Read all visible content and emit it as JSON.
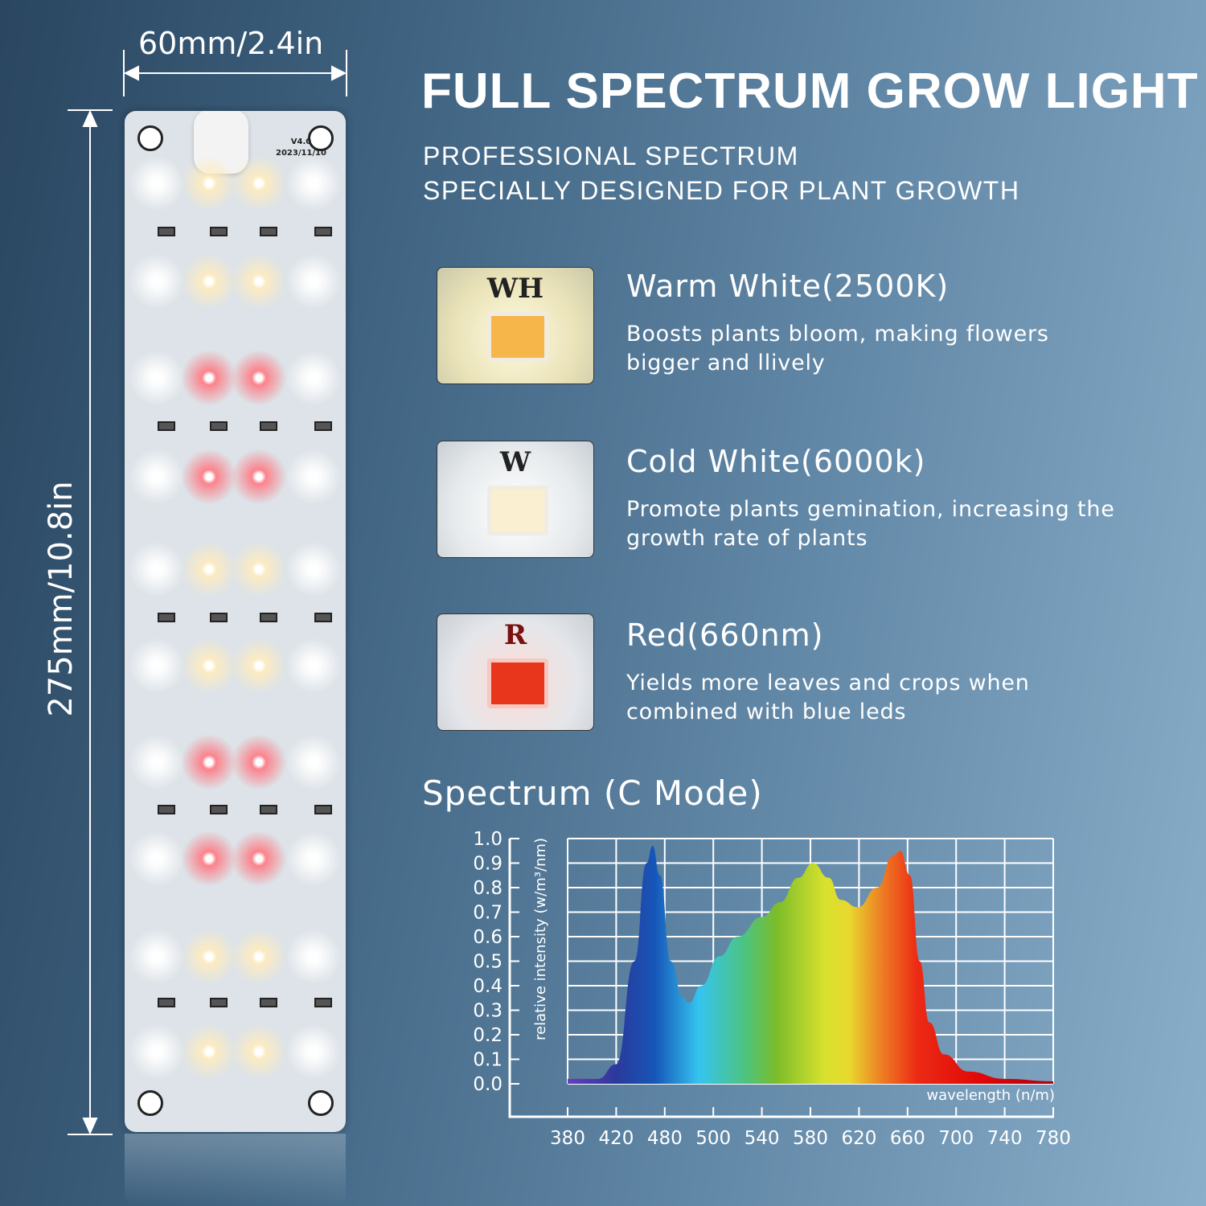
{
  "dimensions": {
    "width": "60mm/2.4in",
    "height": "275mm/10.8in"
  },
  "board": {
    "version": "V4.0",
    "date": "2023/11/10"
  },
  "header": {
    "title": "FULL SPECTRUM GROW LIGHT",
    "subtitle_1": "PROFESSIONAL SPECTRUM",
    "subtitle_2": "SPECIALLY DESIGNED FOR PLANT GROWTH"
  },
  "features": [
    {
      "chip_label": "WH",
      "title": "Warm White(2500K)",
      "description": "Boosts plants bloom, making flowers bigger and llively",
      "chip_color": "#f6b64a"
    },
    {
      "chip_label": "W",
      "title": "Cold White(6000k)",
      "description": "Promote plants gemination, increasing the growth rate of plants",
      "chip_color": "#fbefd2"
    },
    {
      "chip_label": "R",
      "title": "Red(660nm)",
      "description": "Yields more leaves and crops when combined with blue leds",
      "chip_color": "#e8361c"
    }
  ],
  "chart_data": {
    "type": "area",
    "title": "Spectrum (C Mode)",
    "xlabel": "wavelength (n/m)",
    "ylabel": "relative intensity (w/m³/nm)",
    "x_tick_labels": [
      "380",
      "420",
      "480",
      "500",
      "540",
      "580",
      "620",
      "660",
      "700",
      "740",
      "780"
    ],
    "y_tick_labels": [
      "0.0",
      "0.1",
      "0.2",
      "0.3",
      "0.4",
      "0.5",
      "0.6",
      "0.7",
      "0.8",
      "0.9",
      "1.0"
    ],
    "xlim": [
      380,
      780
    ],
    "ylim": [
      0,
      1
    ],
    "grid": true,
    "points": [
      [
        380,
        0.02
      ],
      [
        405,
        0.02
      ],
      [
        420,
        0.08
      ],
      [
        435,
        0.5
      ],
      [
        445,
        0.9
      ],
      [
        450,
        0.97
      ],
      [
        456,
        0.85
      ],
      [
        465,
        0.5
      ],
      [
        475,
        0.35
      ],
      [
        480,
        0.33
      ],
      [
        490,
        0.4
      ],
      [
        505,
        0.52
      ],
      [
        520,
        0.6
      ],
      [
        540,
        0.68
      ],
      [
        555,
        0.74
      ],
      [
        570,
        0.84
      ],
      [
        582,
        0.9
      ],
      [
        595,
        0.84
      ],
      [
        605,
        0.75
      ],
      [
        619,
        0.72
      ],
      [
        635,
        0.8
      ],
      [
        648,
        0.93
      ],
      [
        654,
        0.95
      ],
      [
        662,
        0.85
      ],
      [
        670,
        0.5
      ],
      [
        678,
        0.25
      ],
      [
        690,
        0.12
      ],
      [
        710,
        0.05
      ],
      [
        740,
        0.02
      ],
      [
        780,
        0.01
      ]
    ]
  }
}
